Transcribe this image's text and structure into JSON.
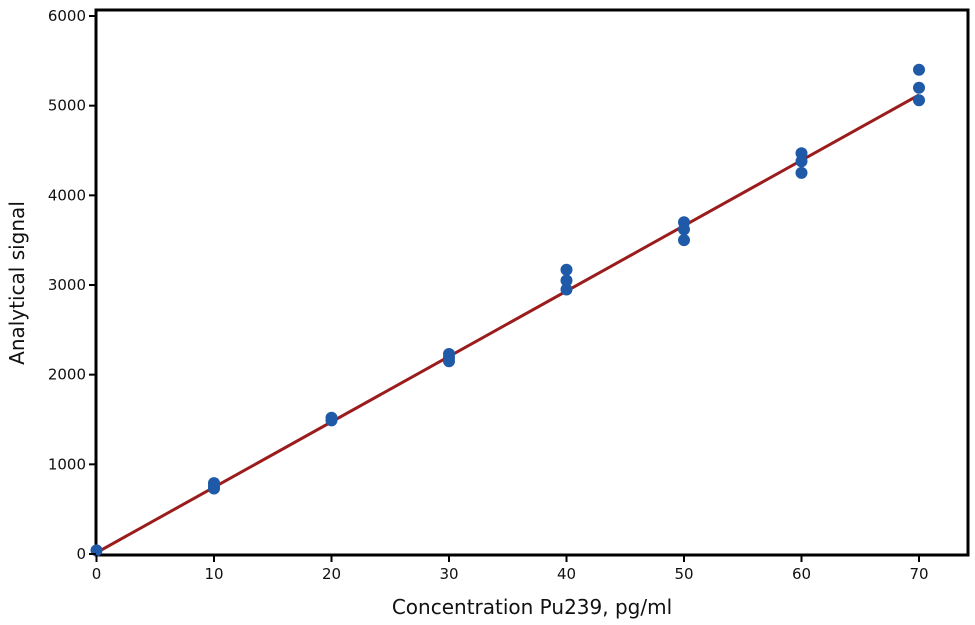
{
  "chart_data": {
    "type": "scatter",
    "xlabel": "Concentration Pu239, pg/ml",
    "ylabel": "Analytical signal",
    "xlim": [
      0,
      70
    ],
    "ylim": [
      0,
      6000
    ],
    "x_ticks": [
      0,
      10,
      20,
      30,
      40,
      50,
      60,
      70
    ],
    "y_ticks": [
      0,
      1000,
      2000,
      3000,
      4000,
      5000,
      6000
    ],
    "grid": false,
    "legend": "none",
    "series": [
      {
        "kind": "points",
        "color": "#1f5aa8",
        "points": [
          [
            0,
            40
          ],
          [
            10,
            790
          ],
          [
            10,
            760
          ],
          [
            10,
            730
          ],
          [
            20,
            1520
          ],
          [
            20,
            1490
          ],
          [
            30,
            2230
          ],
          [
            30,
            2190
          ],
          [
            30,
            2150
          ],
          [
            40,
            3170
          ],
          [
            40,
            3050
          ],
          [
            40,
            2950
          ],
          [
            50,
            3700
          ],
          [
            50,
            3620
          ],
          [
            50,
            3500
          ],
          [
            60,
            4470
          ],
          [
            60,
            4380
          ],
          [
            60,
            4250
          ],
          [
            70,
            5400
          ],
          [
            70,
            5200
          ],
          [
            70,
            5060
          ]
        ]
      },
      {
        "kind": "fit-line",
        "color": "#9b1c1c",
        "x": [
          0,
          70
        ],
        "y": [
          15,
          5120
        ]
      }
    ]
  }
}
